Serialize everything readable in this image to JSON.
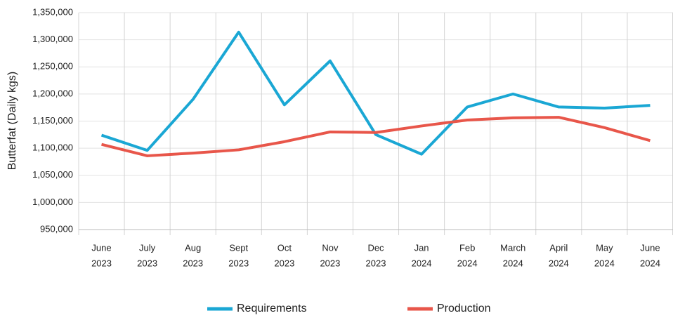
{
  "chart_data": {
    "type": "line",
    "y_label": "Butterfat (Daily kgs)",
    "categories": [
      [
        "June",
        "2023"
      ],
      [
        "July",
        "2023"
      ],
      [
        "Aug",
        "2023"
      ],
      [
        "Sept",
        "2023"
      ],
      [
        "Oct",
        "2023"
      ],
      [
        "Nov",
        "2023"
      ],
      [
        "Dec",
        "2023"
      ],
      [
        "Jan",
        "2024"
      ],
      [
        "Feb",
        "2024"
      ],
      [
        "March",
        "2024"
      ],
      [
        "April",
        "2024"
      ],
      [
        "May",
        "2024"
      ],
      [
        "June",
        "2024"
      ]
    ],
    "series": [
      {
        "name": "Requirements",
        "color": "#1aa7d4",
        "values": [
          1124000,
          1096000,
          1190000,
          1314000,
          1180000,
          1261000,
          1125000,
          1089000,
          1176000,
          1200000,
          1176000,
          1174000,
          1179000
        ]
      },
      {
        "name": "Production",
        "color": "#e8564a",
        "values": [
          1107000,
          1086000,
          1091000,
          1097000,
          1112000,
          1130000,
          1129000,
          1141000,
          1152000,
          1156000,
          1157000,
          1138000,
          1114000
        ]
      }
    ],
    "ylim": [
      950000,
      1350000
    ],
    "yticks": [
      {
        "value": 950000,
        "label": "950,000"
      },
      {
        "value": 1000000,
        "label": "1,000,000"
      },
      {
        "value": 1050000,
        "label": "1,050,000"
      },
      {
        "value": 1100000,
        "label": "1,100,000"
      },
      {
        "value": 1150000,
        "label": "1,150,000"
      },
      {
        "value": 1200000,
        "label": "1,200,000"
      },
      {
        "value": 1250000,
        "label": "1,250,000"
      },
      {
        "value": 1300000,
        "label": "1,300,000"
      },
      {
        "value": 1350000,
        "label": "1,350,000"
      }
    ],
    "grid": true,
    "legend": "bottom"
  }
}
